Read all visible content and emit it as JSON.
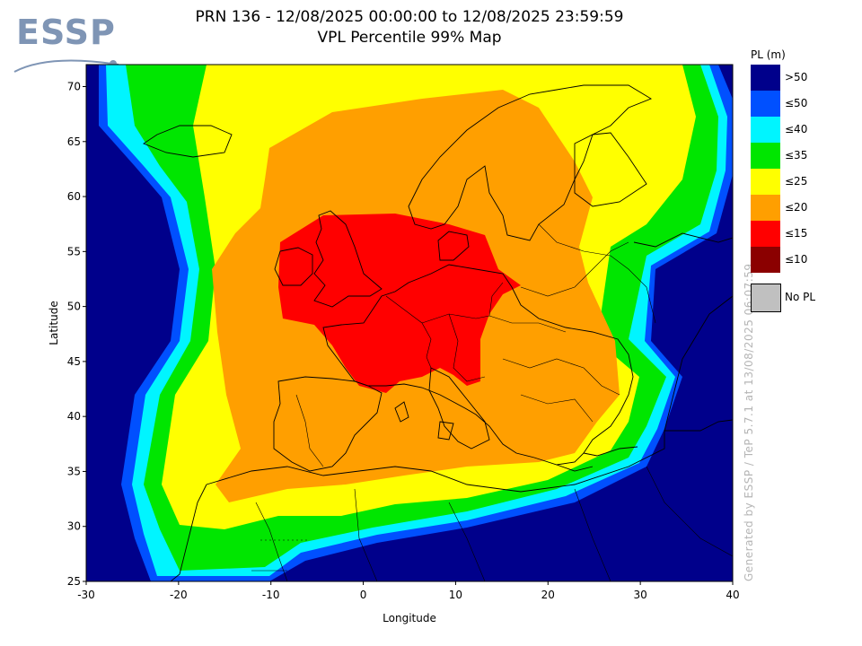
{
  "logo": {
    "text": "ESSP"
  },
  "title": {
    "line1": "PRN 136 - 12/08/2025 00:00:00 to 12/08/2025 23:59:59",
    "line2": "VPL Percentile 99% Map"
  },
  "watermark": "Generated by ESSP / TeP 5.7.1 at 13/08/2025 06:07:59",
  "legend": {
    "title": "PL (m)",
    "items": [
      {
        "label": ">50",
        "color": "#00008b"
      },
      {
        "label": "≤50",
        "color": "#0050ff"
      },
      {
        "label": "≤40",
        "color": "#00f5ff"
      },
      {
        "label": "≤35",
        "color": "#00e600"
      },
      {
        "label": "≤25",
        "color": "#ffff00"
      },
      {
        "label": "≤20",
        "color": "#ff9f00"
      },
      {
        "label": "≤15",
        "color": "#ff0000"
      },
      {
        "label": "≤10",
        "color": "#8b0000"
      }
    ],
    "no_pl": {
      "label": "No PL",
      "color": "#c0c0c0"
    }
  },
  "chart_data": {
    "type": "heatmap",
    "xlabel": "Longitude",
    "ylabel": "Latitude",
    "xlim": [
      -30,
      40
    ],
    "ylim": [
      25,
      72
    ],
    "xticks": [
      -30,
      -20,
      -10,
      0,
      10,
      20,
      30,
      40
    ],
    "yticks": [
      25,
      30,
      35,
      40,
      45,
      50,
      55,
      60,
      65,
      70
    ],
    "zones": [
      {
        "level": ">50",
        "color": "#00008b"
      },
      {
        "level": "≤50",
        "color": "#0050ff"
      },
      {
        "level": "≤40",
        "color": "#00f5ff"
      },
      {
        "level": "≤35",
        "color": "#00e600"
      },
      {
        "level": "≤25",
        "color": "#ffff00"
      },
      {
        "level": "≤20",
        "color": "#ff9f00"
      },
      {
        "level": "≤15",
        "color": "#ff0000"
      }
    ]
  }
}
